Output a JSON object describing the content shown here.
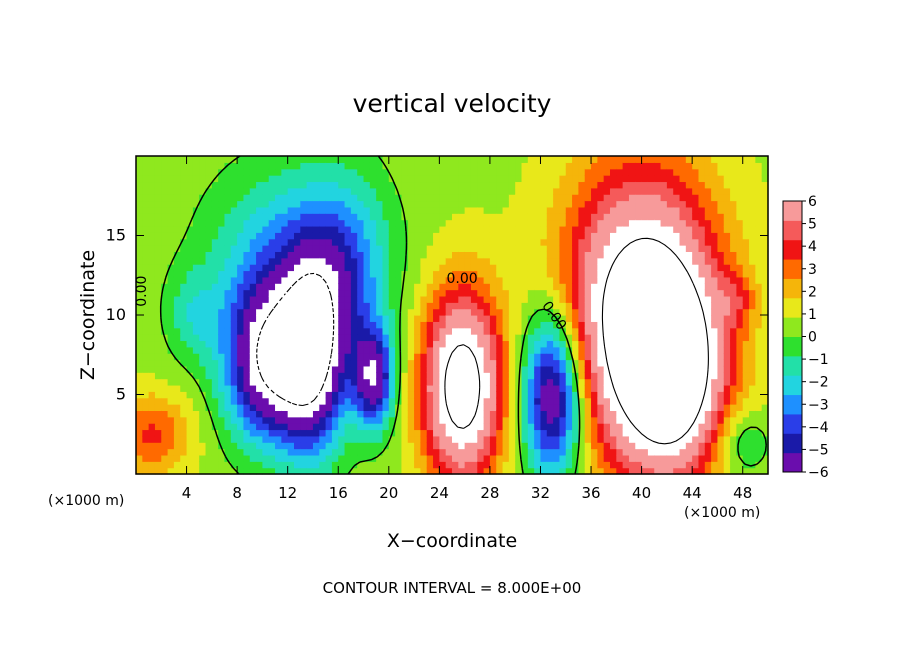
{
  "chart_data": {
    "type": "heatmap",
    "title": "vertical velocity",
    "xlabel": "X−coordinate",
    "ylabel": "Z−coordinate",
    "x_unit_left": "(×1000 m)",
    "x_unit_right": "(×1000 m)",
    "footer": "CONTOUR INTERVAL = 8.000E+00",
    "xlim": [
      0,
      50
    ],
    "ylim": [
      0,
      20
    ],
    "x_ticks": [
      4,
      8,
      12,
      16,
      20,
      24,
      28,
      32,
      36,
      40,
      44,
      48
    ],
    "y_ticks": [
      5,
      10,
      15
    ],
    "colorbar": {
      "range": [
        -6,
        6
      ],
      "ticks": [
        6,
        5,
        4,
        3,
        2,
        1,
        0,
        -1,
        -2,
        -3,
        -4,
        -5,
        -6
      ],
      "tick_labels": [
        "6",
        "5",
        "4",
        "3",
        "2",
        "1",
        "0",
        "−1",
        "−2",
        "−3",
        "−4",
        "−5",
        "−6"
      ]
    },
    "contour_labels": [
      {
        "text": "0.00",
        "x": 0.8,
        "z": 11.5,
        "angle": -90
      },
      {
        "text": "0.00",
        "x": 25.8,
        "z": 12.0,
        "angle": 0
      },
      {
        "text": "0.00",
        "x": 32.8,
        "z": 9.8,
        "angle": 55
      }
    ],
    "features": [
      {
        "x": 10.5,
        "z": 7.0,
        "w": -8.0,
        "sx": 2.4,
        "sz": 3.4
      },
      {
        "x": 14.0,
        "z": 7.5,
        "w": -7.5,
        "sx": 1.8,
        "sz": 4.2
      },
      {
        "x": 18.8,
        "z": 6.0,
        "w": -6.5,
        "sx": 1.1,
        "sz": 2.2
      },
      {
        "x": 12.5,
        "z": 13.5,
        "w": -3.5,
        "sx": 4.5,
        "sz": 4.0
      },
      {
        "x": 16.8,
        "z": 12.0,
        "w": -2.5,
        "sx": 2.2,
        "sz": 4.5
      },
      {
        "x": 33.0,
        "z": 5.0,
        "w": -8.0,
        "sx": 1.7,
        "sz": 3.6
      },
      {
        "x": 25.8,
        "z": 5.5,
        "w": 9.0,
        "sx": 2.2,
        "sz": 4.2
      },
      {
        "x": 40.0,
        "z": 10.0,
        "w": 9.5,
        "sx": 4.2,
        "sz": 6.2
      },
      {
        "x": 42.5,
        "z": 6.0,
        "w": 6.5,
        "sx": 2.6,
        "sz": 4.0
      },
      {
        "x": 1.2,
        "z": 2.5,
        "w": 3.0,
        "sx": 2.2,
        "sz": 1.8
      },
      {
        "x": 4.5,
        "z": 10.0,
        "w": -1.8,
        "sx": 1.5,
        "sz": 2.0
      },
      {
        "x": 47.5,
        "z": 11.0,
        "w": 1.8,
        "sx": 1.0,
        "sz": 1.2
      },
      {
        "x": 48.0,
        "z": 2.0,
        "w": -2.0,
        "sx": 1.5,
        "sz": 1.5
      }
    ]
  }
}
